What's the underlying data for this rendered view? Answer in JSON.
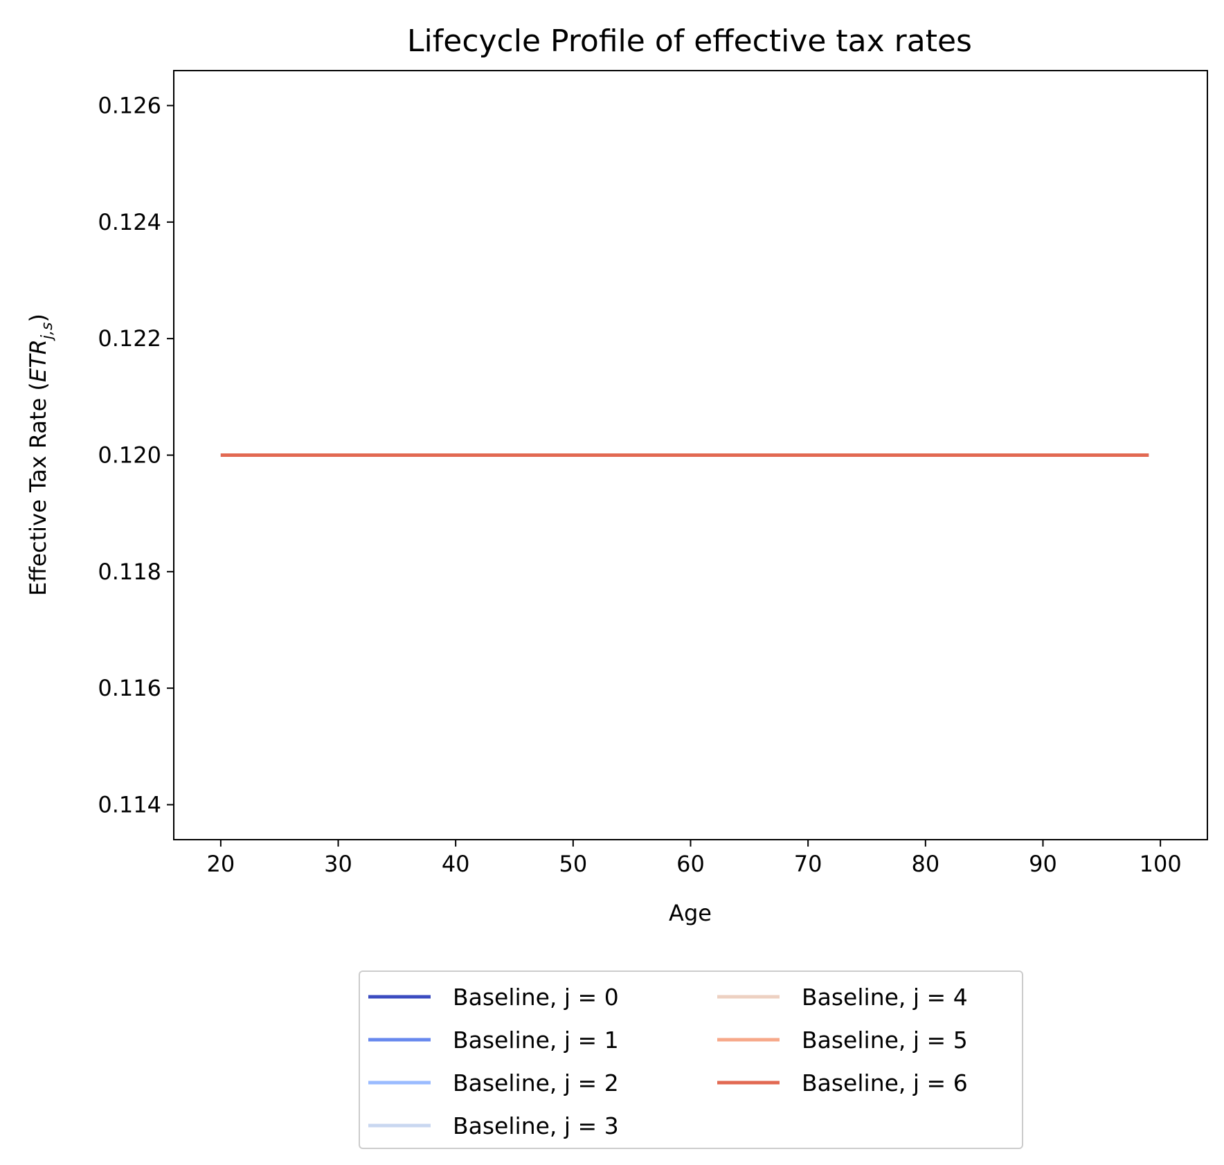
{
  "chart_data": {
    "type": "line",
    "title": "Lifecycle Profile of effective tax rates",
    "xlabel": "Age",
    "ylabel": {
      "prefix": "Effective Tax Rate (",
      "symbol": "ETR",
      "subscript": "j,s",
      "suffix": ")"
    },
    "xlim": [
      16,
      104
    ],
    "ylim": [
      0.1134,
      0.1266
    ],
    "xticks": [
      20,
      30,
      40,
      50,
      60,
      70,
      80,
      90,
      100
    ],
    "xtick_labels": [
      "20",
      "30",
      "40",
      "50",
      "60",
      "70",
      "80",
      "90",
      "100"
    ],
    "yticks": [
      0.114,
      0.116,
      0.118,
      0.12,
      0.122,
      0.124,
      0.126
    ],
    "ytick_labels": [
      "0.114",
      "0.116",
      "0.118",
      "0.120",
      "0.122",
      "0.124",
      "0.126"
    ],
    "grid": false,
    "legend_position": "below plot, two columns",
    "series": [
      {
        "name": "Baseline, j = 0",
        "color": "#3b4cc0",
        "x": [
          20,
          99
        ],
        "y": [
          0.12,
          0.12
        ]
      },
      {
        "name": "Baseline, j = 1",
        "color": "#6788ee",
        "x": [
          20,
          99
        ],
        "y": [
          0.12,
          0.12
        ]
      },
      {
        "name": "Baseline, j = 2",
        "color": "#9abbff",
        "x": [
          20,
          99
        ],
        "y": [
          0.12,
          0.12
        ]
      },
      {
        "name": "Baseline, j = 3",
        "color": "#c9d7f0",
        "x": [
          20,
          99
        ],
        "y": [
          0.12,
          0.12
        ]
      },
      {
        "name": "Baseline, j = 4",
        "color": "#edd1c2",
        "x": [
          20,
          99
        ],
        "y": [
          0.12,
          0.12
        ]
      },
      {
        "name": "Baseline, j = 5",
        "color": "#f7a889",
        "x": [
          20,
          99
        ],
        "y": [
          0.12,
          0.12
        ]
      },
      {
        "name": "Baseline, j = 6",
        "color": "#e26952",
        "x": [
          20,
          99
        ],
        "y": [
          0.12,
          0.12
        ]
      }
    ]
  }
}
